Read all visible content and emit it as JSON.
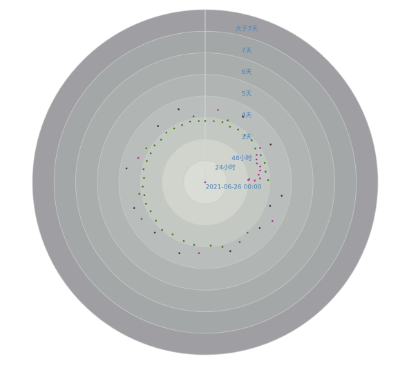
{
  "chart_data": {
    "type": "polar-scatter",
    "rlim": [
      0,
      8
    ],
    "alim": [
      0,
      360
    ],
    "rticks": [
      {
        "value": 0,
        "label": "2021-06-26 00:00"
      },
      {
        "value": 1,
        "label": "24小时"
      },
      {
        "value": 2,
        "label": "48小时"
      },
      {
        "value": 3,
        "label": "3天"
      },
      {
        "value": 4,
        "label": "4天"
      },
      {
        "value": 5,
        "label": "5天"
      },
      {
        "value": 6,
        "label": "6天"
      },
      {
        "value": 7,
        "label": "7天"
      },
      {
        "value": 8,
        "label": "大于7天"
      }
    ],
    "series": [
      {
        "color": "#3f7f10",
        "angle": [
          0,
          8,
          16,
          24,
          32,
          40,
          48,
          56,
          64,
          72,
          80,
          88,
          190,
          200,
          212,
          222,
          232,
          242,
          250,
          258,
          266,
          274,
          282,
          290,
          298,
          306,
          314,
          322,
          330,
          338,
          346,
          354,
          165,
          150,
          175,
          140,
          350,
          20,
          300,
          260
        ],
        "radius": [
          2.84,
          2.86,
          2.9,
          2.82,
          2.88,
          2.85,
          2.9,
          2.8,
          2.86,
          2.9,
          2.84,
          2.92,
          2.95,
          2.9,
          2.85,
          2.98,
          2.9,
          2.86,
          2.92,
          2.88,
          2.9,
          2.84,
          2.92,
          2.88,
          2.86,
          2.9,
          2.84,
          2.92,
          2.88,
          2.86,
          2.9,
          2.85,
          3.1,
          3.2,
          2.95,
          3.05,
          3.1,
          3.05,
          3.15,
          3.1
        ]
      },
      {
        "color": "#b0309a",
        "angle": [
          62,
          66,
          70,
          74,
          78,
          82,
          86,
          88,
          58,
          290,
          240,
          185,
          10,
          120,
          0,
          86,
          87
        ],
        "radius": [
          2.7,
          2.6,
          2.55,
          2.65,
          2.6,
          2.5,
          2.55,
          2.3,
          3.0,
          3.3,
          3.4,
          3.3,
          3.4,
          3.6,
          0,
          2.05,
          2.0
        ]
      },
      {
        "color": "#333344",
        "angle": [
          100,
          130,
          200,
          250,
          280,
          320,
          340,
          30,
          60,
          160,
          225,
          110
        ],
        "radius": [
          3.6,
          3.3,
          3.5,
          3.5,
          3.7,
          3.4,
          3.6,
          3.5,
          3.5,
          3.4,
          3.3,
          3.2
        ]
      }
    ]
  }
}
